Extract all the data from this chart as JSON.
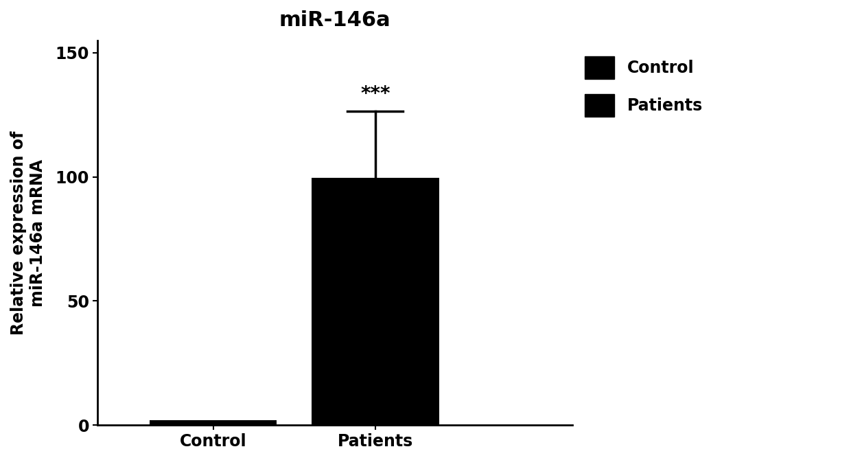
{
  "title": "miR-146a",
  "categories": [
    "Control",
    "Patients"
  ],
  "values": [
    2.0,
    99.5
  ],
  "errors": [
    0.5,
    27.0
  ],
  "bar_color": "#000000",
  "bar_width": 0.55,
  "ylabel": "Relative expression of\nmiR-146a mRNA",
  "ylim": [
    0,
    155
  ],
  "yticks": [
    0,
    50,
    100,
    150
  ],
  "significance": "***",
  "legend_labels": [
    "Control",
    "Patients"
  ],
  "background_color": "#ffffff",
  "title_fontsize": 22,
  "label_fontsize": 17,
  "tick_fontsize": 17,
  "legend_fontsize": 17,
  "x_positions": [
    0.3,
    1.0
  ],
  "xlim": [
    -0.2,
    1.85
  ]
}
